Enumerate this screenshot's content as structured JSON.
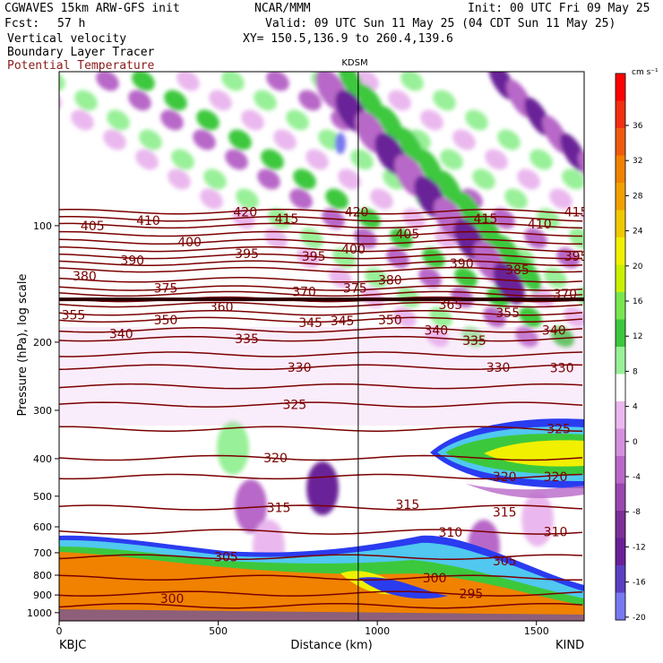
{
  "header": {
    "model": "CGWAVES 15km ARW-GFS init",
    "org": "NCAR/MMM",
    "init": "Init: 00 UTC Fri 09 May 25",
    "fcst_label": "Fcst:",
    "fcst_value": "57 h",
    "valid": "Valid: 09 UTC Sun 11 May 25 (04 CDT Sun 11 May 25)",
    "fields": [
      "Vertical velocity",
      "Boundary Layer Tracer",
      "Potential Temperature"
    ],
    "xy": "XY= 150.5,136.9 to 260.4,139.6"
  },
  "colors": {
    "theta_contour": "#7a0000",
    "pos_low": "#98f098",
    "pos_mid": "#3cc83c",
    "pos_high": "#f0f000",
    "neg_low": "#eab8ee",
    "neg_mid": "#b868c8",
    "neg_high": "#6a2098",
    "neg_extreme": "#7878f0",
    "pbl_outer": "#2a3cf0",
    "pbl_mid": "#50c8f0",
    "pbl_inner": "#f08200"
  },
  "chart_data": {
    "type": "heatmap",
    "title": "KDSM",
    "xlabel": "Distance (km)",
    "ylabel": "Pressure (hPa), log scale",
    "x_ticks": [
      "0",
      "500",
      "1000",
      "1500"
    ],
    "x_ends": [
      "KBJC",
      "KIND"
    ],
    "xlim": [
      0,
      1650
    ],
    "y_ticks": [
      "100",
      "200",
      "300",
      "400",
      "500",
      "600",
      "700",
      "800",
      "900",
      "1000"
    ],
    "ylim": [
      1050,
      40
    ],
    "y_scale": "log",
    "station_marker_km": 940,
    "colorbar": {
      "unit": "cm s⁻¹",
      "labels": [
        "36",
        "32",
        "28",
        "24",
        "20",
        "16",
        "12",
        "8",
        "4",
        "0",
        "-4",
        "-8",
        "-12",
        "-16",
        "-20"
      ],
      "colors": [
        "#ff0000",
        "#f03010",
        "#f05a10",
        "#f08200",
        "#f0a000",
        "#f0c800",
        "#f0f000",
        "#c8f000",
        "#78e650",
        "#3cc83c",
        "#98f098",
        "#ffffff",
        "#eab8ee",
        "#d490dc",
        "#b868c8",
        "#9a48b0",
        "#7a3098",
        "#6a2098",
        "#5a40c0",
        "#7878f0"
      ]
    },
    "theta_labels": [
      {
        "v": "420",
        "km": 585,
        "p": 92
      },
      {
        "v": "415",
        "km": 715,
        "p": 96
      },
      {
        "v": "420",
        "km": 935,
        "p": 92
      },
      {
        "v": "415",
        "km": 1340,
        "p": 96
      },
      {
        "v": "410",
        "km": 1510,
        "p": 99
      },
      {
        "v": "415",
        "km": 1625,
        "p": 92
      },
      {
        "v": "405",
        "km": 105,
        "p": 100
      },
      {
        "v": "410",
        "km": 280,
        "p": 97
      },
      {
        "v": "400",
        "km": 410,
        "p": 110
      },
      {
        "v": "395",
        "km": 590,
        "p": 118
      },
      {
        "v": "395",
        "km": 800,
        "p": 120
      },
      {
        "v": "400",
        "km": 925,
        "p": 115
      },
      {
        "v": "405",
        "km": 1095,
        "p": 105
      },
      {
        "v": "390",
        "km": 1265,
        "p": 125
      },
      {
        "v": "395",
        "km": 1625,
        "p": 120
      },
      {
        "v": "390",
        "km": 230,
        "p": 123
      },
      {
        "v": "385",
        "km": 1440,
        "p": 130
      },
      {
        "v": "380",
        "km": 80,
        "p": 135
      },
      {
        "v": "375",
        "km": 335,
        "p": 145
      },
      {
        "v": "370",
        "km": 770,
        "p": 148
      },
      {
        "v": "375",
        "km": 930,
        "p": 145
      },
      {
        "v": "380",
        "km": 1040,
        "p": 138
      },
      {
        "v": "370",
        "km": 1590,
        "p": 150
      },
      {
        "v": "360",
        "km": 510,
        "p": 162
      },
      {
        "v": "365",
        "km": 1230,
        "p": 160
      },
      {
        "v": "355",
        "km": 45,
        "p": 170
      },
      {
        "v": "350",
        "km": 335,
        "p": 175
      },
      {
        "v": "345",
        "km": 790,
        "p": 178
      },
      {
        "v": "345",
        "km": 890,
        "p": 176
      },
      {
        "v": "350",
        "km": 1040,
        "p": 175
      },
      {
        "v": "355",
        "km": 1410,
        "p": 168
      },
      {
        "v": "340",
        "km": 195,
        "p": 190
      },
      {
        "v": "340",
        "km": 1185,
        "p": 186
      },
      {
        "v": "340",
        "km": 1555,
        "p": 186
      },
      {
        "v": "335",
        "km": 590,
        "p": 196
      },
      {
        "v": "335",
        "km": 1305,
        "p": 198
      },
      {
        "v": "330",
        "km": 755,
        "p": 232
      },
      {
        "v": "330",
        "km": 1380,
        "p": 232
      },
      {
        "v": "330",
        "km": 1580,
        "p": 233
      },
      {
        "v": "325",
        "km": 740,
        "p": 290
      },
      {
        "v": "325",
        "km": 1570,
        "p": 335
      },
      {
        "v": "320",
        "km": 680,
        "p": 398
      },
      {
        "v": "320",
        "km": 1400,
        "p": 445
      },
      {
        "v": "320",
        "km": 1560,
        "p": 445
      },
      {
        "v": "315",
        "km": 690,
        "p": 535
      },
      {
        "v": "315",
        "km": 1095,
        "p": 525
      },
      {
        "v": "315",
        "km": 1400,
        "p": 550
      },
      {
        "v": "310",
        "km": 1230,
        "p": 620
      },
      {
        "v": "310",
        "km": 1560,
        "p": 618
      },
      {
        "v": "305",
        "km": 525,
        "p": 718
      },
      {
        "v": "305",
        "km": 1400,
        "p": 735
      },
      {
        "v": "300",
        "km": 355,
        "p": 918
      },
      {
        "v": "300",
        "km": 1180,
        "p": 812
      },
      {
        "v": "295",
        "km": 1295,
        "p": 893
      }
    ]
  }
}
